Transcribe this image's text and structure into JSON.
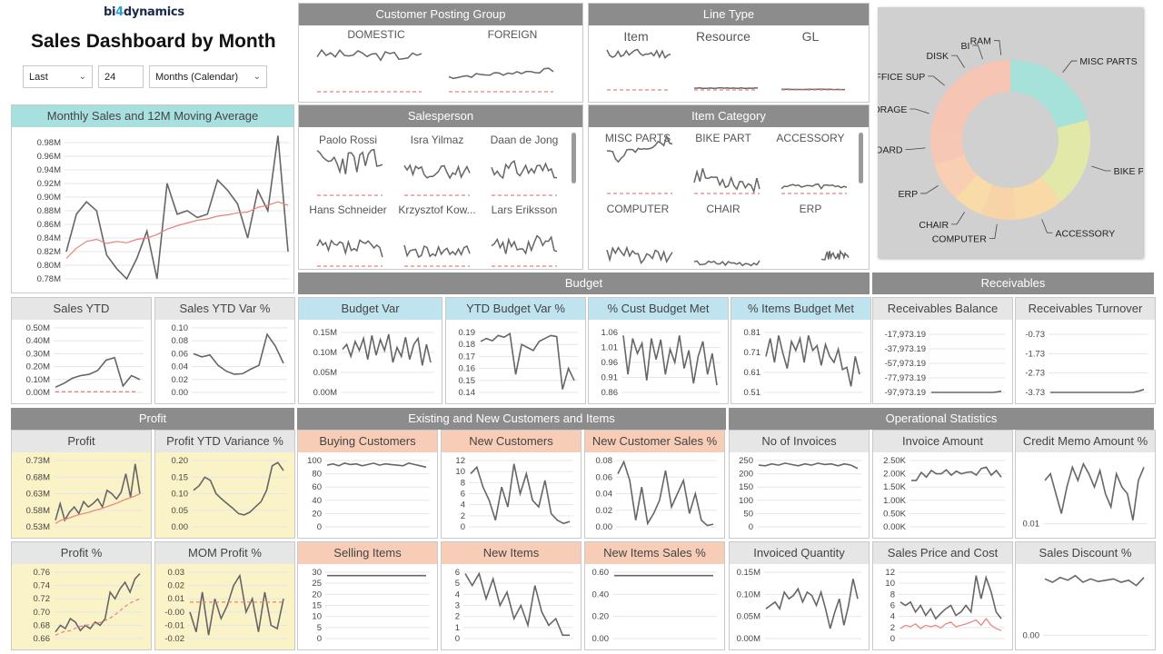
{
  "header": {
    "logo": {
      "part1": "bi",
      "part2": "4",
      "part3": "dynamics"
    },
    "title": "Sales Dashboard by Month",
    "filter_period": "Last",
    "filter_count": "24",
    "filter_unit": "Months (Calendar)"
  },
  "groups": {
    "customer_posting_group": "Customer Posting Group",
    "line_type": "Line Type",
    "salesperson": "Salesperson",
    "item_category": "Item Category",
    "budget": "Budget",
    "receivables": "Receivables",
    "profit": "Profit",
    "existing_new": "Existing and New Customers and Items",
    "operational": "Operational Statistics"
  },
  "customer_posting_group": {
    "labels": [
      "DOMESTIC",
      "FOREIGN"
    ]
  },
  "line_type": {
    "labels": [
      "Item",
      "Resource",
      "GL"
    ]
  },
  "salesperson": {
    "labels": [
      "Paolo Rossi",
      "Isra Yilmaz",
      "Daan de Jong",
      "Hans Schneider",
      "Krzysztof Kow...",
      "Lars Eriksson"
    ]
  },
  "item_category": {
    "labels": [
      "MISC PARTS",
      "BIKE PART",
      "ACCESSORY",
      "COMPUTER",
      "CHAIR",
      "ERP"
    ]
  },
  "donut": {
    "labels": [
      "MISC PARTS",
      "BIKE PART",
      "ACCESSORY",
      "COMPUTER",
      "CHAIR",
      "ERP",
      "BOARD",
      "STORAGE",
      "OFFICE SUP",
      "DISK",
      "BI",
      "RAM"
    ],
    "colors": [
      "#a6e1da",
      "#e2e9a8",
      "#f9d9a6",
      "#f8d3a8",
      "#f9dba8",
      "#f8cfb2",
      "#f6c7b4",
      "#f6c5b3",
      "#f6c5b3",
      "#f6c5b3",
      "#f6c5b3",
      "#f6c5b3"
    ]
  },
  "tiles": {
    "monthly_sales": {
      "title": "Monthly Sales and 12M Moving Average",
      "ticks": [
        "0.98M",
        "0.96M",
        "0.94M",
        "0.92M",
        "0.90M",
        "0.88M",
        "0.86M",
        "0.84M",
        "0.82M",
        "0.80M",
        "0.78M"
      ]
    },
    "sales_ytd": {
      "title": "Sales YTD",
      "ticks": [
        "0.50M",
        "0.40M",
        "0.30M",
        "0.20M",
        "0.10M",
        "0.00M"
      ]
    },
    "sales_ytd_var": {
      "title": "Sales YTD Var %",
      "ticks": [
        "0.10",
        "0.08",
        "0.06",
        "0.04",
        "0.02",
        "0.00"
      ]
    },
    "budget_var": {
      "title": "Budget Var",
      "ticks": [
        "0.15M",
        "0.10M",
        "0.05M",
        "0.00M"
      ]
    },
    "ytd_budget_var": {
      "title": "YTD Budget Var %",
      "ticks": [
        "0.19",
        "0.18",
        "0.17",
        "0.16",
        "0.15",
        "0.14"
      ]
    },
    "cust_budget_met": {
      "title": "% Cust Budget Met",
      "ticks": [
        "1.06",
        "1.01",
        "0.96",
        "0.91",
        "0.86"
      ]
    },
    "items_budget_met": {
      "title": "% Items Budget Met",
      "ticks": [
        "0.81",
        "0.71",
        "0.61",
        "0.51"
      ]
    },
    "receivables_balance": {
      "title": "Receivables Balance",
      "ticks": [
        "-17,973.19",
        "-37,973.19",
        "-57,973.19",
        "-77,973.19",
        "-97,973.19"
      ]
    },
    "receivables_turnover": {
      "title": "Receivables Turnover",
      "ticks": [
        "-0.73",
        "-1.73",
        "-2.73",
        "-3.73"
      ]
    },
    "profit": {
      "title": "Profit",
      "ticks": [
        "0.73M",
        "0.68M",
        "0.63M",
        "0.58M",
        "0.53M"
      ]
    },
    "profit_ytd_var": {
      "title": "Profit YTD Variance %",
      "ticks": [
        "0.20",
        "0.15",
        "0.10",
        "0.05",
        "0.00"
      ]
    },
    "buying_customers": {
      "title": "Buying Customers",
      "ticks": [
        "100",
        "80",
        "60",
        "40",
        "20",
        "0"
      ]
    },
    "new_customers": {
      "title": "New Customers",
      "ticks": [
        "12",
        "10",
        "8",
        "6",
        "4",
        "2",
        "0"
      ]
    },
    "new_customer_sales": {
      "title": "New Customer Sales %",
      "ticks": [
        "0.08",
        "0.06",
        "0.04",
        "0.02",
        "0.00"
      ]
    },
    "no_of_invoices": {
      "title": "No of Invoices",
      "ticks": [
        "250",
        "200",
        "150",
        "100",
        "50",
        "0"
      ]
    },
    "invoice_amount": {
      "title": "Invoice Amount",
      "ticks": [
        "2.50K",
        "2.00K",
        "1.50K",
        "1.00K",
        "0.50K",
        "0.00K"
      ]
    },
    "credit_memo": {
      "title": "Credit Memo Amount %",
      "ticks": [
        "0.01"
      ]
    },
    "profit_pct": {
      "title": "Profit %",
      "ticks": [
        "0.76",
        "0.74",
        "0.72",
        "0.70",
        "0.68",
        "0.66"
      ]
    },
    "mom_profit": {
      "title": "MOM Profit %",
      "ticks": [
        "0.03",
        "0.02",
        "0.01",
        "-0.00",
        "-0.01",
        "-0.02"
      ]
    },
    "selling_items": {
      "title": "Selling Items",
      "ticks": [
        "30",
        "25",
        "20",
        "15",
        "10",
        "5",
        "0"
      ]
    },
    "new_items": {
      "title": "New Items",
      "ticks": [
        "6",
        "5",
        "4",
        "3",
        "2",
        "1",
        "0"
      ]
    },
    "new_items_sales": {
      "title": "New Items Sales %",
      "ticks": [
        "0.60",
        "0.40",
        "0.20",
        "0.00"
      ]
    },
    "invoiced_quantity": {
      "title": "Invoiced Quantity",
      "ticks": [
        "0.15M",
        "0.10M",
        "0.05M",
        "0.00M"
      ]
    },
    "sales_price_cost": {
      "title": "Sales Price and Cost",
      "ticks": [
        "12",
        "10",
        "8",
        "6",
        "4",
        "2",
        "0"
      ]
    },
    "sales_discount": {
      "title": "Sales Discount %",
      "ticks": [
        "0.00"
      ]
    }
  },
  "colors": {
    "line": "#666666",
    "avg": "#e8817a",
    "dash": "#e8817a",
    "grid": "#e6e6e6"
  }
}
